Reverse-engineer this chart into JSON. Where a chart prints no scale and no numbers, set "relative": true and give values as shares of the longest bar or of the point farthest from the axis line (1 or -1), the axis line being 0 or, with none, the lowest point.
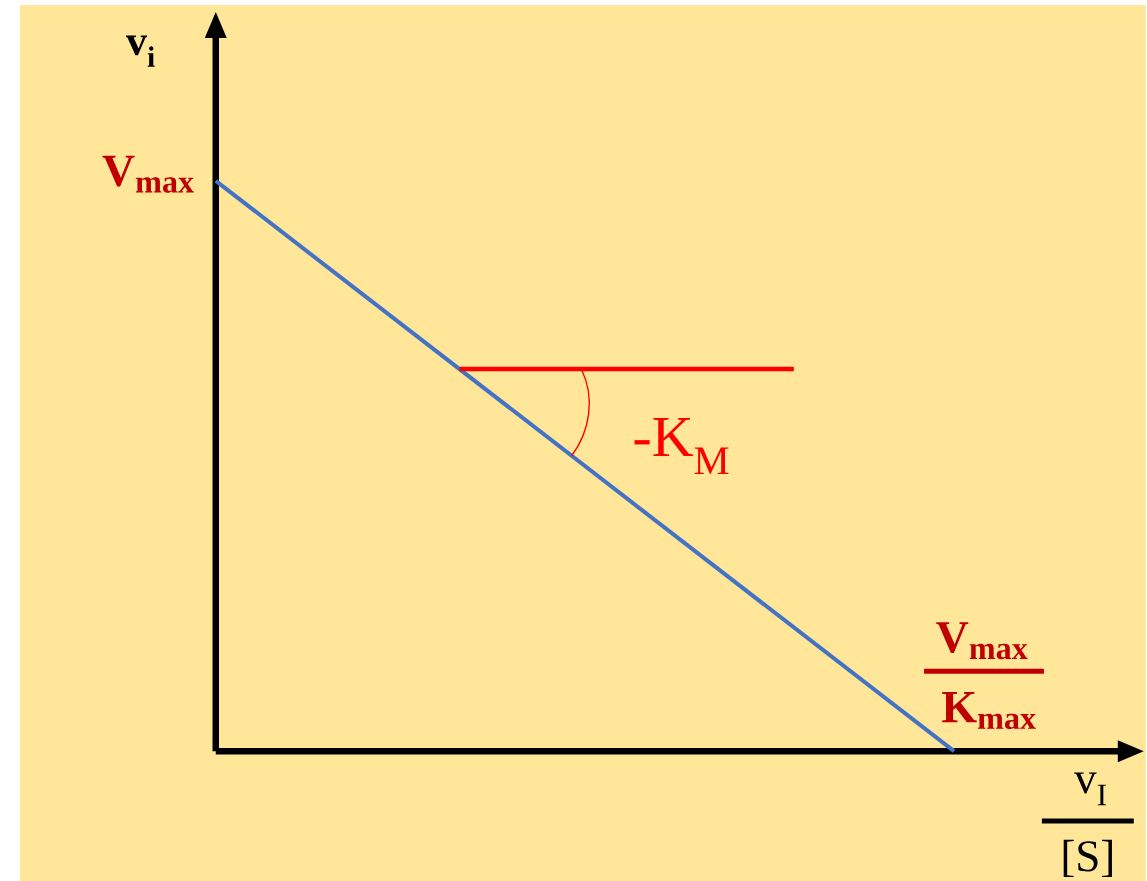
{
  "chart_data": {
    "type": "line",
    "relative": true,
    "ylabel": "v$_{i}$",
    "xlabel": "v$_{I}$",
    "categories": [
      null,
      null
    ],
    "series": [
      {
        "color": "#4472c4",
        "values": [
          1,
          0
        ]
      }
    ],
    "ref_lines": [
      {
        "axis": "y",
        "value": 0.67,
        "color": "#ff0000"
      }
    ],
    "annotations": [
      "V$_{max}$",
      "-K$_{M}$",
      "V$_{max}$",
      "K$_{max}$",
      "[S]"
    ]
  }
}
